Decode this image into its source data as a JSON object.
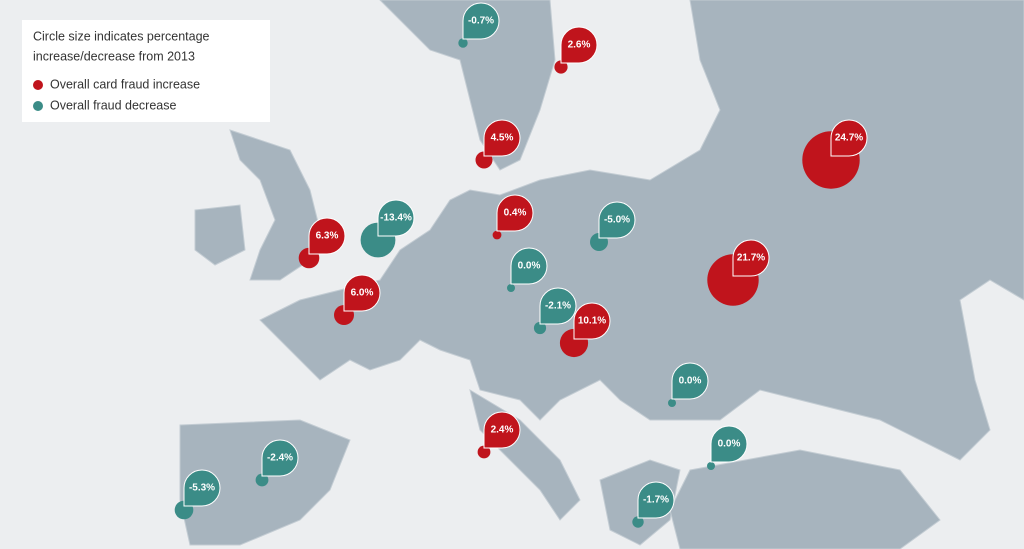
{
  "chart_data": {
    "type": "map",
    "legend": {
      "title": [
        "Circle size indicates percentage",
        "increase/decrease from 2013"
      ]
    },
    "series": [
      {
        "name": "Overall card fraud increase",
        "color": "#c0141c",
        "markers": [
          {
            "value": 2.6,
            "label": "2.6%"
          },
          {
            "value": 4.5,
            "label": "4.5%"
          },
          {
            "value": 24.7,
            "label": "24.7%"
          },
          {
            "value": 0.4,
            "label": "0.4%"
          },
          {
            "value": 6.3,
            "label": "6.3%"
          },
          {
            "value": 21.7,
            "label": "21.7%"
          },
          {
            "value": 6.0,
            "label": "6.0%"
          },
          {
            "value": 10.1,
            "label": "10.1%"
          },
          {
            "value": 2.4,
            "label": "2.4%"
          }
        ]
      },
      {
        "name": "Overall fraud decrease",
        "color": "#3b8c87",
        "markers": [
          {
            "value": -0.7,
            "label": "-0.7%"
          },
          {
            "value": -13.4,
            "label": "-13.4%"
          },
          {
            "value": -5.0,
            "label": "-5.0%"
          },
          {
            "value": 0.0,
            "label": "0.0%"
          },
          {
            "value": -2.1,
            "label": "-2.1%"
          },
          {
            "value": 0.0,
            "label": "0.0%"
          },
          {
            "value": 0.0,
            "label": "0.0%"
          },
          {
            "value": -2.4,
            "label": "-2.4%"
          },
          {
            "value": -5.3,
            "label": "-5.3%"
          },
          {
            "value": -1.7,
            "label": "-1.7%"
          }
        ]
      }
    ]
  }
}
